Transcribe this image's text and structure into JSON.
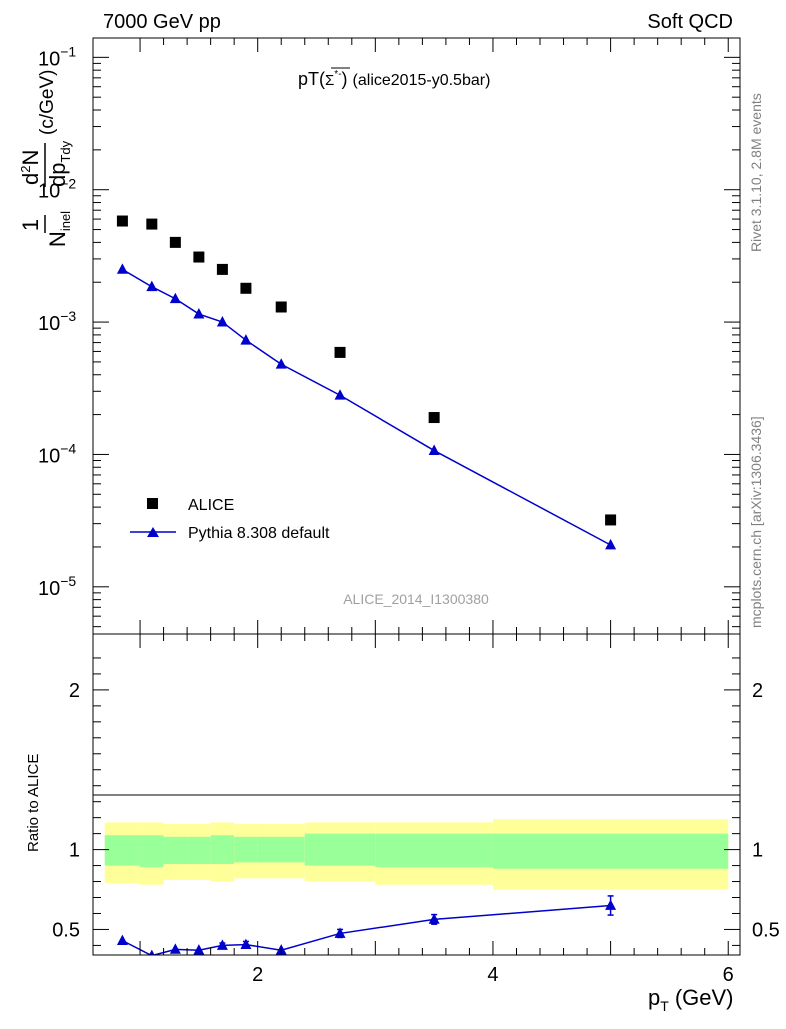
{
  "header": {
    "energy": "7000 GeV pp",
    "category": "Soft QCD"
  },
  "side_labels": {
    "rivet": "Rivet 3.1.10,  2.8M events",
    "mcplots": "mcplots.cern.ch [arXiv:1306.3436]"
  },
  "plot_title": {
    "main": "pT",
    "particle": "Σ",
    "particle_sup": "*",
    "particle_charge": "-",
    "suffix": "(alice2015-y0.5bar)"
  },
  "watermark": "ALICE_2014_I1300380",
  "ylabel_top": {
    "one": "1",
    "n": "N",
    "n_sub": "inel",
    "dN": "d",
    "dN_sup": "2",
    "dN_tail": "N",
    "dp": "dp",
    "dp_sub": "Tdy",
    "unit": "(c/GeV)"
  },
  "ylabel_bottom": "Ratio to ALICE",
  "xlabel": {
    "main": "p",
    "sub": "T",
    "unit": "(GeV)"
  },
  "legend": [
    {
      "label": "ALICE",
      "marker": "square",
      "color": "#000000"
    },
    {
      "label": "Pythia 8.308 default",
      "marker": "triangle",
      "color": "#0000cc"
    }
  ],
  "colors": {
    "data": "#000000",
    "mc": "#0000cc",
    "band_inner": "#99ff99",
    "band_outer": "#ffff99"
  },
  "chart_data": [
    {
      "type": "scatter",
      "yscale": "log",
      "xlim": [
        0.6,
        6.1
      ],
      "ylim": [
        4.4e-06,
        0.14
      ],
      "y_ticks": [
        {
          "value": 1e-05,
          "mantissa": "10",
          "exp": "−5"
        },
        {
          "value": 0.0001,
          "mantissa": "10",
          "exp": "−4"
        },
        {
          "value": 0.001,
          "mantissa": "10",
          "exp": "−3"
        },
        {
          "value": 0.01,
          "mantissa": "10",
          "exp": "−2"
        },
        {
          "value": 0.1,
          "mantissa": "10",
          "exp": "−1"
        }
      ],
      "series": [
        {
          "name": "ALICE",
          "x": [
            0.85,
            1.1,
            1.3,
            1.5,
            1.7,
            1.9,
            2.2,
            2.7,
            3.5,
            5.0
          ],
          "y": [
            0.0058,
            0.0055,
            0.004,
            0.0031,
            0.0025,
            0.0018,
            0.0013,
            0.00059,
            0.00019,
            3.2e-05
          ]
        },
        {
          "name": "Pythia 8.308 default",
          "x": [
            0.85,
            1.1,
            1.3,
            1.5,
            1.7,
            1.9,
            2.2,
            2.7,
            3.5,
            5.0
          ],
          "y": [
            0.0025,
            0.00185,
            0.0015,
            0.00115,
            0.001,
            0.00073,
            0.00048,
            0.00028,
            0.000107,
            2.07e-05
          ],
          "yerr": [
            0,
            0,
            0,
            0,
            0,
            0,
            0,
            0,
            0,
            1.5e-06
          ]
        }
      ]
    },
    {
      "type": "line",
      "xlim": [
        0.6,
        6.1
      ],
      "ylim": [
        0.34,
        2.35
      ],
      "x_ticks": [
        2,
        4,
        6
      ],
      "y_ticks": [
        0.5,
        1,
        2
      ],
      "bands": {
        "edges": [
          0.7,
          1.0,
          1.2,
          1.4,
          1.6,
          1.8,
          2.0,
          2.4,
          3.0,
          4.0,
          6.0
        ],
        "inner_lo": [
          0.9,
          0.89,
          0.91,
          0.91,
          0.91,
          0.92,
          0.92,
          0.9,
          0.89,
          0.88,
          0.88
        ],
        "inner_hi": [
          1.09,
          1.09,
          1.08,
          1.08,
          1.09,
          1.08,
          1.08,
          1.1,
          1.1,
          1.1,
          1.1
        ],
        "outer_lo": [
          0.79,
          0.78,
          0.81,
          0.81,
          0.8,
          0.82,
          0.82,
          0.8,
          0.78,
          0.75,
          0.75
        ],
        "outer_hi": [
          1.17,
          1.17,
          1.16,
          1.16,
          1.17,
          1.16,
          1.16,
          1.17,
          1.17,
          1.19,
          1.19
        ]
      },
      "series": [
        {
          "name": "Pythia 8.308 default",
          "x": [
            0.85,
            1.1,
            1.3,
            1.5,
            1.7,
            1.9,
            2.2,
            2.7,
            3.5,
            5.0
          ],
          "y": [
            0.43,
            0.336,
            0.375,
            0.37,
            0.4,
            0.405,
            0.37,
            0.475,
            0.563,
            0.65
          ],
          "yerr": [
            0,
            0,
            0,
            0,
            0.015,
            0.02,
            0,
            0.025,
            0.03,
            0.06
          ]
        }
      ]
    }
  ]
}
